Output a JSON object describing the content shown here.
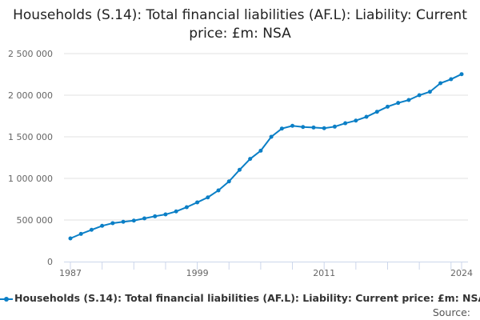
{
  "chart_data": {
    "type": "line",
    "title": "Households (S.14): Total financial liabilities (AF.L): Liability: Current price: £m: NSA",
    "x": [
      1987,
      1988,
      1989,
      1990,
      1991,
      1992,
      1993,
      1994,
      1995,
      1996,
      1997,
      1998,
      1999,
      2000,
      2001,
      2002,
      2003,
      2004,
      2005,
      2006,
      2007,
      2008,
      2009,
      2010,
      2011,
      2012,
      2013,
      2014,
      2015,
      2016,
      2017,
      2018,
      2019,
      2020,
      2021,
      2022,
      2023,
      2024
    ],
    "series": [
      {
        "name": "Households (S.14): Total financial liabilities (AF.L): Liability: Current price: £m: NSA",
        "color": "#0b7fc6",
        "values": [
          279000,
          333000,
          382000,
          430000,
          462000,
          478000,
          493000,
          519000,
          545000,
          567000,
          603000,
          654000,
          712000,
          772000,
          856000,
          964000,
          1103000,
          1234000,
          1333000,
          1500000,
          1599000,
          1632000,
          1618000,
          1612000,
          1603000,
          1622000,
          1663000,
          1695000,
          1740000,
          1801000,
          1862000,
          1907000,
          1942000,
          2000000,
          2041000,
          2144000,
          2192000,
          2253000
        ]
      }
    ],
    "ylim": [
      0,
      2500000
    ],
    "xlim": [
      1987,
      2024
    ],
    "y_ticks": [
      {
        "v": 0,
        "label": "0"
      },
      {
        "v": 500000,
        "label": "500 000"
      },
      {
        "v": 1000000,
        "label": "1 000 000"
      },
      {
        "v": 1500000,
        "label": "1 500 000"
      },
      {
        "v": 2000000,
        "label": "2 000 000"
      },
      {
        "v": 2500000,
        "label": "2 500 000"
      }
    ],
    "x_tick_labels": [
      "1987",
      "1999",
      "2011",
      "2024"
    ],
    "grid": "horizontal",
    "legend": "bottom"
  },
  "source_label": "Source:"
}
